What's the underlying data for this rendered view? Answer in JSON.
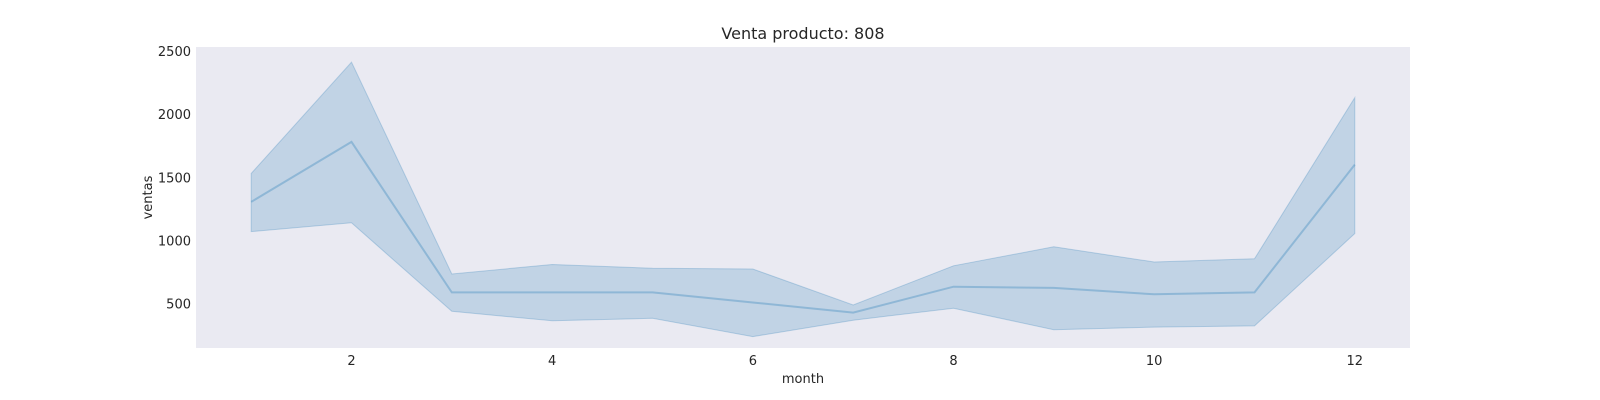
{
  "chart_data": {
    "type": "line",
    "title": "Venta producto: 808",
    "xlabel": "month",
    "ylabel": "ventas",
    "xlim": [
      0.45,
      12.55
    ],
    "ylim": [
      150,
      2530
    ],
    "xticks": [
      2,
      4,
      6,
      8,
      10,
      12
    ],
    "yticks": [
      500,
      1000,
      1500,
      2000,
      2500
    ],
    "grid": false,
    "background": "#eaeaf2",
    "series": [
      {
        "x": [
          1,
          2,
          3,
          4,
          5,
          6,
          7,
          8,
          9,
          10,
          11,
          12
        ],
        "y": [
          1305,
          1780,
          590,
          590,
          590,
          510,
          430,
          635,
          625,
          575,
          590,
          1600
        ],
        "ci_lower": [
          1070,
          1140,
          440,
          365,
          385,
          240,
          370,
          465,
          295,
          315,
          325,
          1055
        ],
        "ci_upper": [
          1530,
          2410,
          735,
          810,
          780,
          775,
          490,
          800,
          950,
          830,
          855,
          2130
        ],
        "color": "#1f77b4"
      }
    ]
  }
}
